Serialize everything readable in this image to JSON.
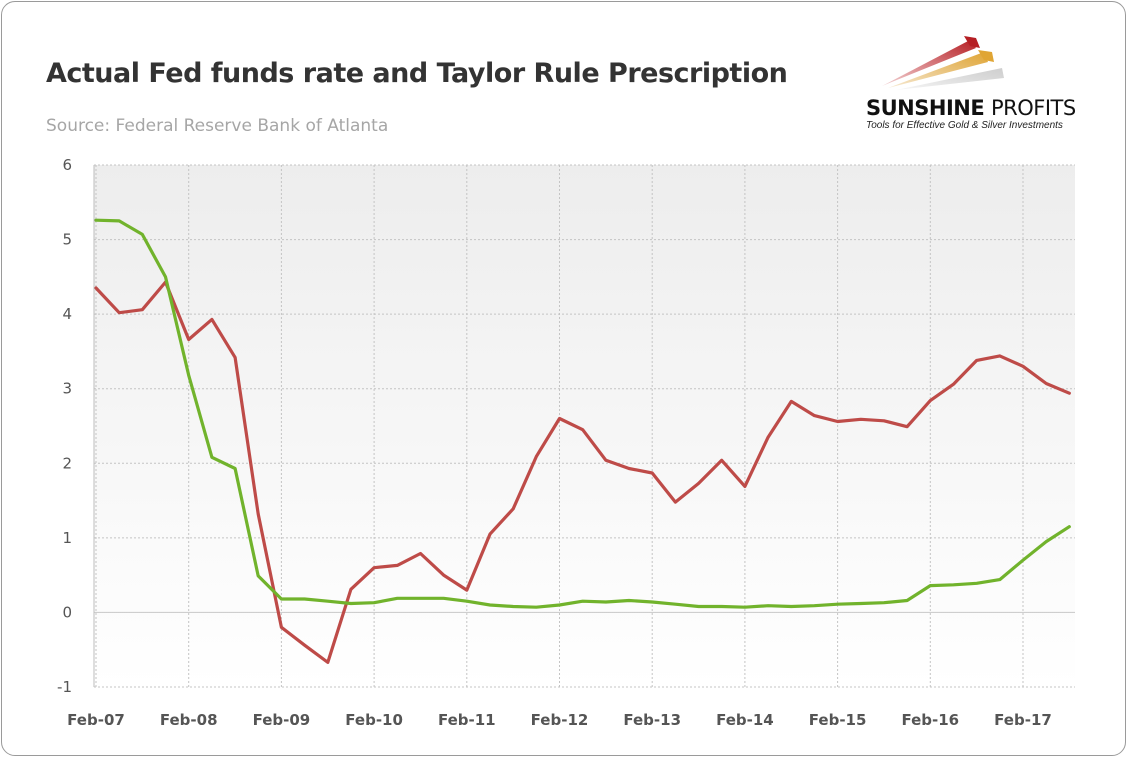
{
  "header": {
    "title": "Actual Fed funds rate and Taylor Rule Prescription",
    "subtitle": "Source: Federal Reserve Bank of Atlanta"
  },
  "logo": {
    "name_bold": "SUNSHINE",
    "name_light": "PROFITS",
    "tagline": "Tools for Effective Gold & Silver Investments"
  },
  "chart_data": {
    "type": "line",
    "title": "Actual Fed funds rate and Taylor Rule Prescription",
    "xlabel": "",
    "ylabel": "",
    "ylim": [
      -1,
      6
    ],
    "y_ticks": [
      "6",
      "5",
      "4",
      "3",
      "2",
      "1",
      "0",
      "-1"
    ],
    "y_tick_values": [
      6,
      5,
      4,
      3,
      2,
      1,
      0,
      -1
    ],
    "x_tick_labels": [
      "Feb-07",
      "Feb-08",
      "Feb-09",
      "Feb-10",
      "Feb-11",
      "Feb-12",
      "Feb-13",
      "Feb-14",
      "Feb-15",
      "Feb-16",
      "Feb-17"
    ],
    "x_start": "Feb-07",
    "x_step_months": 3,
    "grid": true,
    "legend": "none",
    "series": [
      {
        "color": "#be4b48",
        "values": [
          4.35,
          4.02,
          4.06,
          4.43,
          3.66,
          3.93,
          3.42,
          1.32,
          -0.2,
          -0.44,
          -0.67,
          0.31,
          0.6,
          0.63,
          0.79,
          0.5,
          0.3,
          1.05,
          1.39,
          2.09,
          2.6,
          2.45,
          2.04,
          1.93,
          1.87,
          1.48,
          1.73,
          2.04,
          1.69,
          2.35,
          2.83,
          2.64,
          2.56,
          2.59,
          2.57,
          2.49,
          2.84,
          3.06,
          3.38,
          3.44,
          3.3,
          3.07,
          2.94
        ]
      },
      {
        "color": "#71b32c",
        "values": [
          5.26,
          5.25,
          5.07,
          4.5,
          3.18,
          2.08,
          1.93,
          0.49,
          0.18,
          0.18,
          0.15,
          0.12,
          0.13,
          0.19,
          0.19,
          0.19,
          0.15,
          0.1,
          0.08,
          0.07,
          0.1,
          0.15,
          0.14,
          0.16,
          0.14,
          0.11,
          0.08,
          0.08,
          0.07,
          0.09,
          0.08,
          0.09,
          0.11,
          0.12,
          0.13,
          0.16,
          0.36,
          0.37,
          0.39,
          0.44,
          0.7,
          0.95,
          1.15
        ]
      }
    ]
  }
}
